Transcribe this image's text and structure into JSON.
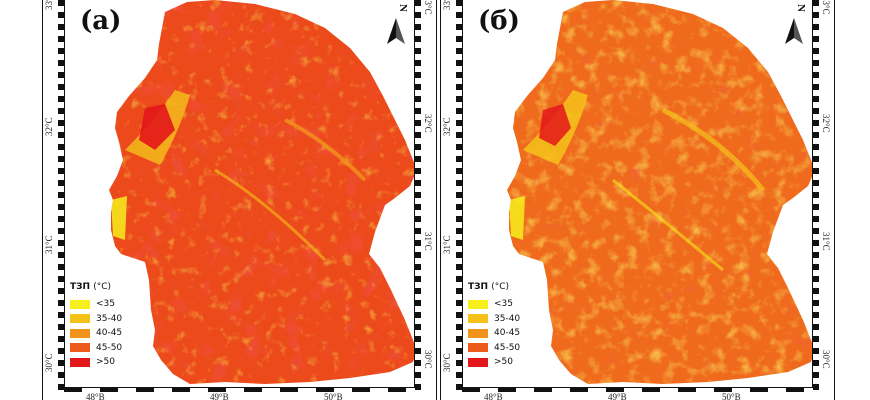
{
  "panels": [
    {
      "letter": "(a)",
      "north_label": "N",
      "lat_left": [
        "33°",
        "32°C",
        "31°C",
        "30°C"
      ],
      "lat_right": [
        "33°C",
        "32°C",
        "31°C",
        "30°C"
      ],
      "lon": [
        "48°B",
        "49°B",
        "50°B"
      ],
      "legend_title": "ТЗП",
      "legend_unit": "(°C)",
      "legend": [
        {
          "label": "<35",
          "color": "#f6ef1c"
        },
        {
          "label": "35-40",
          "color": "#f5c21a"
        },
        {
          "label": "40-45",
          "color": "#f2931c"
        },
        {
          "label": "45-50",
          "color": "#ee5a1b"
        },
        {
          "label": ">50",
          "color": "#e3161a"
        }
      ]
    },
    {
      "letter": "(б)",
      "north_label": "N",
      "lat_left": [
        "33°",
        "32°C",
        "31°C",
        "30°C"
      ],
      "lat_right": [
        "33°C",
        "32°C",
        "31°C",
        "30°C"
      ],
      "lon": [
        "48°B",
        "49°B",
        "50°B"
      ],
      "legend_title": "ТЗП",
      "legend_unit": "(°C)",
      "legend": [
        {
          "label": "<35",
          "color": "#f6ef1c"
        },
        {
          "label": "35-40",
          "color": "#f5c21a"
        },
        {
          "label": "40-45",
          "color": "#f2931c"
        },
        {
          "label": "45-50",
          "color": "#ee5a1b"
        },
        {
          "label": ">50",
          "color": "#e3161a"
        }
      ]
    }
  ]
}
